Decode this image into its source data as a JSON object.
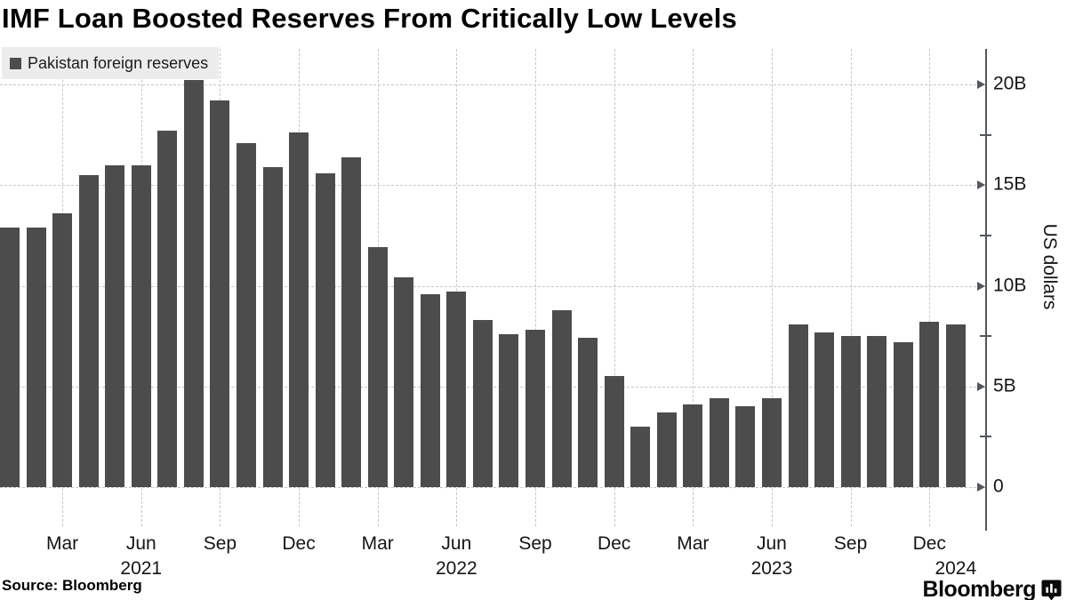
{
  "title": "IMF Loan Boosted Reserves From Critically Low Levels",
  "legend": {
    "label": "Pakistan foreign reserves"
  },
  "source": "Source: Bloomberg",
  "brand": {
    "wordmark": "Bloomberg",
    "icon": "bloomberg-terminal-icon"
  },
  "colors": {
    "bar": "#4c4c4c",
    "grid": "#c7c7c7",
    "axis": "#54575a",
    "legend_bg": "#ececec",
    "background": "#ffffff",
    "text": "#111111"
  },
  "chart_data": {
    "type": "bar",
    "series_name": "Pakistan foreign reserves",
    "unit": "US dollars (billions)",
    "title": "IMF Loan Boosted Reserves From Critically Low Levels",
    "ylabel": "US dollars",
    "xlabel": "",
    "grid": true,
    "legend_position": "top-left",
    "ylim": [
      0,
      21.8
    ],
    "x": [
      "Jan 2021",
      "Feb 2021",
      "Mar 2021",
      "Apr 2021",
      "May 2021",
      "Jun 2021",
      "Jul 2021",
      "Aug 2021",
      "Sep 2021",
      "Oct 2021",
      "Nov 2021",
      "Dec 2021",
      "Jan 2022",
      "Feb 2022",
      "Mar 2022",
      "Apr 2022",
      "May 2022",
      "Jun 2022",
      "Jul 2022",
      "Aug 2022",
      "Sep 2022",
      "Oct 2022",
      "Nov 2022",
      "Dec 2022",
      "Jan 2023",
      "Feb 2023",
      "Mar 2023",
      "Apr 2023",
      "May 2023",
      "Jun 2023",
      "Jul 2023",
      "Aug 2023",
      "Sep 2023",
      "Oct 2023",
      "Nov 2023",
      "Dec 2023",
      "Jan 2024"
    ],
    "values": [
      12.9,
      12.9,
      13.6,
      15.5,
      16.0,
      16.0,
      17.7,
      20.2,
      19.2,
      17.1,
      15.9,
      17.6,
      15.6,
      16.4,
      11.9,
      10.4,
      9.6,
      9.7,
      8.3,
      7.6,
      7.8,
      8.8,
      7.4,
      5.5,
      3.0,
      3.7,
      4.1,
      4.4,
      4.0,
      4.4,
      8.1,
      7.7,
      7.5,
      7.5,
      7.2,
      8.2,
      8.1
    ],
    "yticks": [
      {
        "value": 0,
        "label": "0"
      },
      {
        "value": 5,
        "label": "5B"
      },
      {
        "value": 10,
        "label": "10B"
      },
      {
        "value": 15,
        "label": "15B"
      },
      {
        "value": 20,
        "label": "20B"
      }
    ],
    "yticks_minor": [
      2.5,
      7.5,
      12.5,
      17.5
    ],
    "xticks": [
      {
        "index": 2,
        "label": "Mar"
      },
      {
        "index": 5,
        "label": "Jun"
      },
      {
        "index": 8,
        "label": "Sep"
      },
      {
        "index": 11,
        "label": "Dec"
      },
      {
        "index": 14,
        "label": "Mar"
      },
      {
        "index": 17,
        "label": "Jun"
      },
      {
        "index": 20,
        "label": "Sep"
      },
      {
        "index": 23,
        "label": "Dec"
      },
      {
        "index": 26,
        "label": "Mar"
      },
      {
        "index": 29,
        "label": "Jun"
      },
      {
        "index": 32,
        "label": "Sep"
      },
      {
        "index": 35,
        "label": "Dec"
      }
    ],
    "year_labels": [
      {
        "index": 5,
        "label": "2021"
      },
      {
        "index": 17,
        "label": "2022"
      },
      {
        "index": 29,
        "label": "2023"
      },
      {
        "index": 36,
        "label": "2024"
      }
    ]
  }
}
